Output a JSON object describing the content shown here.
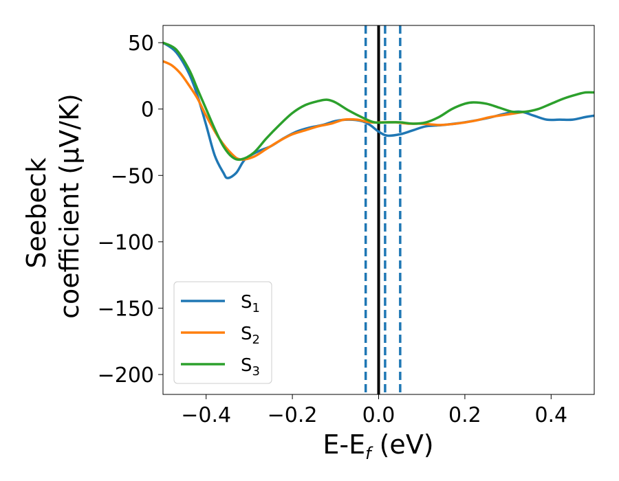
{
  "chart_data": {
    "type": "line",
    "xlabel": {
      "main": "E-E",
      "sub": "f",
      "unit": " (eV)"
    },
    "ylabel": {
      "line1": "Seebeck",
      "line2": "coefficient  (μV/K)"
    },
    "xlim": [
      -0.5,
      0.5
    ],
    "ylim": [
      -215,
      63
    ],
    "xticks": [
      -0.4,
      -0.2,
      0.0,
      0.2,
      0.4
    ],
    "xtick_labels": [
      "−0.4",
      "−0.2",
      "0.0",
      "0.2",
      "0.4"
    ],
    "yticks": [
      50,
      0,
      -50,
      -100,
      -150,
      -200
    ],
    "ytick_labels": [
      "50",
      "0",
      "−50",
      "−100",
      "−150",
      "−200"
    ],
    "grid": false,
    "legend_position": "lower-left",
    "vlines": [
      {
        "x": 0.0,
        "style": "solid",
        "color": "#000000"
      },
      {
        "x": -0.03,
        "style": "dashed",
        "color": "#1f77b4"
      },
      {
        "x": 0.015,
        "style": "dashed",
        "color": "#1f77b4"
      },
      {
        "x": 0.05,
        "style": "dashed",
        "color": "#1f77b4"
      }
    ],
    "series": [
      {
        "name": "S",
        "sub": "1",
        "color": "#1f77b4",
        "points": [
          [
            -0.5,
            50
          ],
          [
            -0.47,
            43
          ],
          [
            -0.44,
            27
          ],
          [
            -0.42,
            10
          ],
          [
            -0.4,
            -12
          ],
          [
            -0.38,
            -35
          ],
          [
            -0.36,
            -48
          ],
          [
            -0.35,
            -52
          ],
          [
            -0.33,
            -48
          ],
          [
            -0.31,
            -38
          ],
          [
            -0.28,
            -32
          ],
          [
            -0.25,
            -28
          ],
          [
            -0.22,
            -22
          ],
          [
            -0.19,
            -17
          ],
          [
            -0.16,
            -14
          ],
          [
            -0.13,
            -12
          ],
          [
            -0.1,
            -9
          ],
          [
            -0.07,
            -8
          ],
          [
            -0.04,
            -9
          ],
          [
            -0.02,
            -12
          ],
          [
            0.0,
            -17
          ],
          [
            0.02,
            -20
          ],
          [
            0.05,
            -19
          ],
          [
            0.08,
            -16
          ],
          [
            0.11,
            -13
          ],
          [
            0.15,
            -12
          ],
          [
            0.2,
            -10
          ],
          [
            0.25,
            -7
          ],
          [
            0.3,
            -3
          ],
          [
            0.33,
            -2
          ],
          [
            0.36,
            -5
          ],
          [
            0.39,
            -8
          ],
          [
            0.42,
            -8
          ],
          [
            0.45,
            -8
          ],
          [
            0.48,
            -6
          ],
          [
            0.5,
            -5
          ]
        ]
      },
      {
        "name": "S",
        "sub": "2",
        "color": "#ff7f0e",
        "points": [
          [
            -0.5,
            36
          ],
          [
            -0.48,
            33
          ],
          [
            -0.46,
            27
          ],
          [
            -0.44,
            18
          ],
          [
            -0.42,
            8
          ],
          [
            -0.4,
            -5
          ],
          [
            -0.37,
            -22
          ],
          [
            -0.34,
            -34
          ],
          [
            -0.32,
            -38
          ],
          [
            -0.29,
            -36
          ],
          [
            -0.26,
            -30
          ],
          [
            -0.23,
            -24
          ],
          [
            -0.2,
            -19
          ],
          [
            -0.17,
            -16
          ],
          [
            -0.14,
            -13
          ],
          [
            -0.11,
            -11
          ],
          [
            -0.08,
            -8
          ],
          [
            -0.05,
            -8
          ],
          [
            -0.02,
            -10
          ],
          [
            0.01,
            -10
          ],
          [
            0.04,
            -10
          ],
          [
            0.07,
            -11
          ],
          [
            0.1,
            -11
          ],
          [
            0.14,
            -12
          ],
          [
            0.18,
            -11
          ],
          [
            0.22,
            -9
          ],
          [
            0.26,
            -6
          ],
          [
            0.3,
            -4
          ],
          [
            0.34,
            -2
          ]
        ]
      },
      {
        "name": "S",
        "sub": "3",
        "color": "#2ca02c",
        "points": [
          [
            -0.5,
            50
          ],
          [
            -0.47,
            45
          ],
          [
            -0.44,
            30
          ],
          [
            -0.42,
            15
          ],
          [
            -0.4,
            0
          ],
          [
            -0.38,
            -15
          ],
          [
            -0.36,
            -28
          ],
          [
            -0.34,
            -36
          ],
          [
            -0.32,
            -38
          ],
          [
            -0.29,
            -33
          ],
          [
            -0.26,
            -22
          ],
          [
            -0.23,
            -12
          ],
          [
            -0.2,
            -3
          ],
          [
            -0.17,
            3
          ],
          [
            -0.14,
            6
          ],
          [
            -0.12,
            7
          ],
          [
            -0.1,
            5
          ],
          [
            -0.07,
            -1
          ],
          [
            -0.04,
            -6
          ],
          [
            -0.01,
            -10
          ],
          [
            0.02,
            -10
          ],
          [
            0.05,
            -10
          ],
          [
            0.08,
            -11
          ],
          [
            0.11,
            -10
          ],
          [
            0.14,
            -6
          ],
          [
            0.17,
            0
          ],
          [
            0.2,
            4
          ],
          [
            0.22,
            5
          ],
          [
            0.25,
            4
          ],
          [
            0.28,
            1
          ],
          [
            0.31,
            -2
          ],
          [
            0.34,
            -2
          ],
          [
            0.37,
            0
          ],
          [
            0.4,
            4
          ],
          [
            0.43,
            8
          ],
          [
            0.46,
            11
          ],
          [
            0.48,
            12.5
          ],
          [
            0.5,
            12.5
          ]
        ]
      }
    ]
  }
}
